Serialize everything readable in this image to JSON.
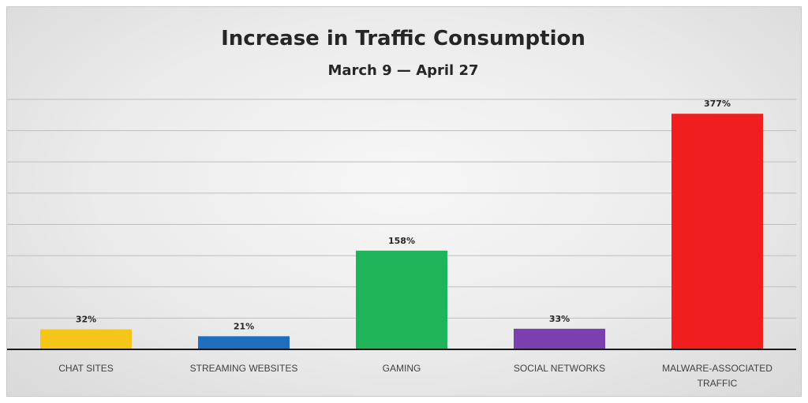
{
  "chart_data": {
    "type": "bar",
    "title": "Increase in Traffic Consumption",
    "subtitle": "March 9 — April 27",
    "categories": [
      "CHAT SITES",
      "STREAMING  WEBSITES",
      "GAMING",
      "SOCIAL NETWORKS",
      "MALWARE-ASSOCIATED TRAFFIC"
    ],
    "category_lines": [
      [
        "CHAT SITES"
      ],
      [
        "STREAMING  WEBSITES"
      ],
      [
        "GAMING"
      ],
      [
        "SOCIAL NETWORKS"
      ],
      [
        "MALWARE-ASSOCIATED",
        "TRAFFIC"
      ]
    ],
    "values": [
      32,
      21,
      158,
      33,
      377
    ],
    "data_labels": [
      "32%",
      "21%",
      "158%",
      "33%",
      "377%"
    ],
    "colors": [
      "#f5c518",
      "#1f6fc0",
      "#1fb35a",
      "#7b3fb0",
      "#f01e1e"
    ],
    "ylim": [
      0,
      400
    ],
    "y_gridlines": [
      50,
      100,
      150,
      200,
      250,
      300,
      350,
      400
    ],
    "grid": true,
    "legend": "none",
    "xlabel": "",
    "ylabel": ""
  }
}
